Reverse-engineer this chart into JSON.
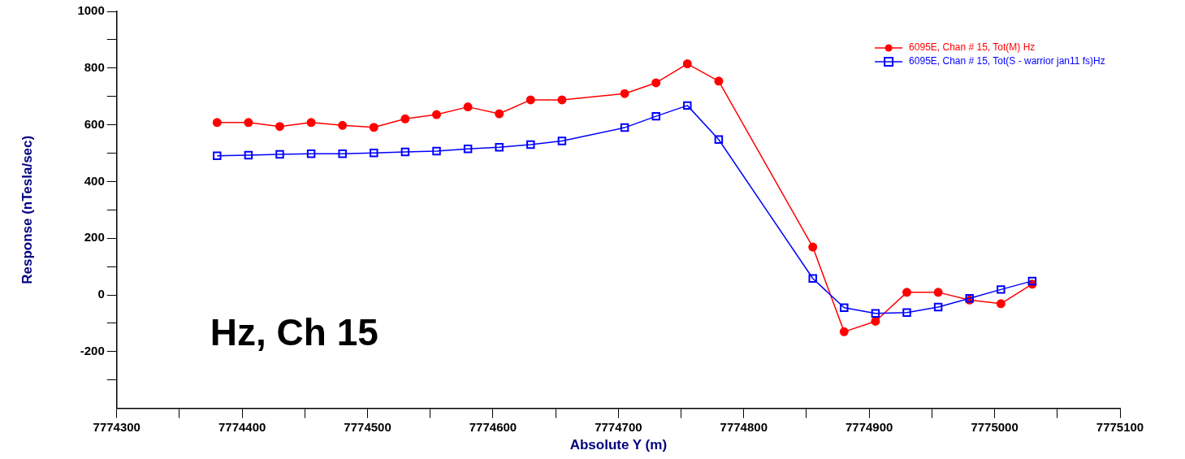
{
  "chart_data": {
    "type": "line",
    "xlabel": "Absolute Y (m)",
    "ylabel": "Response (nTesla/sec)",
    "annotations": [
      "Hz, Ch 15"
    ],
    "x": [
      7774380,
      7774405,
      7774430,
      7774455,
      7774480,
      7774505,
      7774530,
      7774555,
      7774580,
      7774605,
      7774630,
      7774655,
      7774705,
      7774730,
      7774755,
      7774780,
      7774855,
      7774880,
      7774905,
      7774930,
      7774955,
      7774980,
      7775005,
      7775030
    ],
    "series": [
      {
        "name": "6095E, Chan # 15, Tot(M) Hz",
        "color": "#ff0000",
        "marker": "circle",
        "values": [
          608,
          608,
          594,
          608,
          598,
          591,
          621,
          636,
          663,
          639,
          688,
          688,
          710,
          748,
          815,
          754,
          169,
          -130,
          -93,
          9,
          9,
          -18,
          -31,
          38
        ]
      },
      {
        "name": "6095E, Chan # 15, Tot(S - warrior jan11 fs)Hz",
        "color": "#0000ff",
        "marker": "square",
        "values": [
          491,
          493,
          496,
          498,
          498,
          501,
          504,
          507,
          515,
          521,
          530,
          543,
          590,
          630,
          668,
          548,
          58,
          -45,
          -65,
          -62,
          -43,
          -12,
          19,
          49
        ]
      }
    ],
    "xlim": [
      7774300,
      7775100
    ],
    "xticks": [
      7774300,
      {
        "value": 7774350,
        "label": null
      },
      7774400,
      {
        "value": 7774450,
        "label": null
      },
      7774500,
      {
        "value": 7774550,
        "label": null
      },
      7774600,
      {
        "value": 7774650,
        "label": null
      },
      7774700,
      {
        "value": 7774750,
        "label": null
      },
      7774800,
      {
        "value": 7774850,
        "label": null
      },
      7774900,
      {
        "value": 7774950,
        "label": null
      },
      7775000,
      {
        "value": 7775050,
        "label": null
      },
      7775100
    ],
    "ylim": [
      -400,
      1000
    ],
    "yticks": [
      {
        "value": -300,
        "label": null
      },
      -200,
      {
        "value": -100,
        "label": null
      },
      0,
      {
        "value": 100,
        "label": null
      },
      200,
      {
        "value": 300,
        "label": null
      },
      400,
      {
        "value": 500,
        "label": null
      },
      600,
      {
        "value": 700,
        "label": null
      },
      800,
      {
        "value": 900,
        "label": null
      },
      1000
    ],
    "grid": false,
    "legend": "top right",
    "line_style": "solid"
  }
}
